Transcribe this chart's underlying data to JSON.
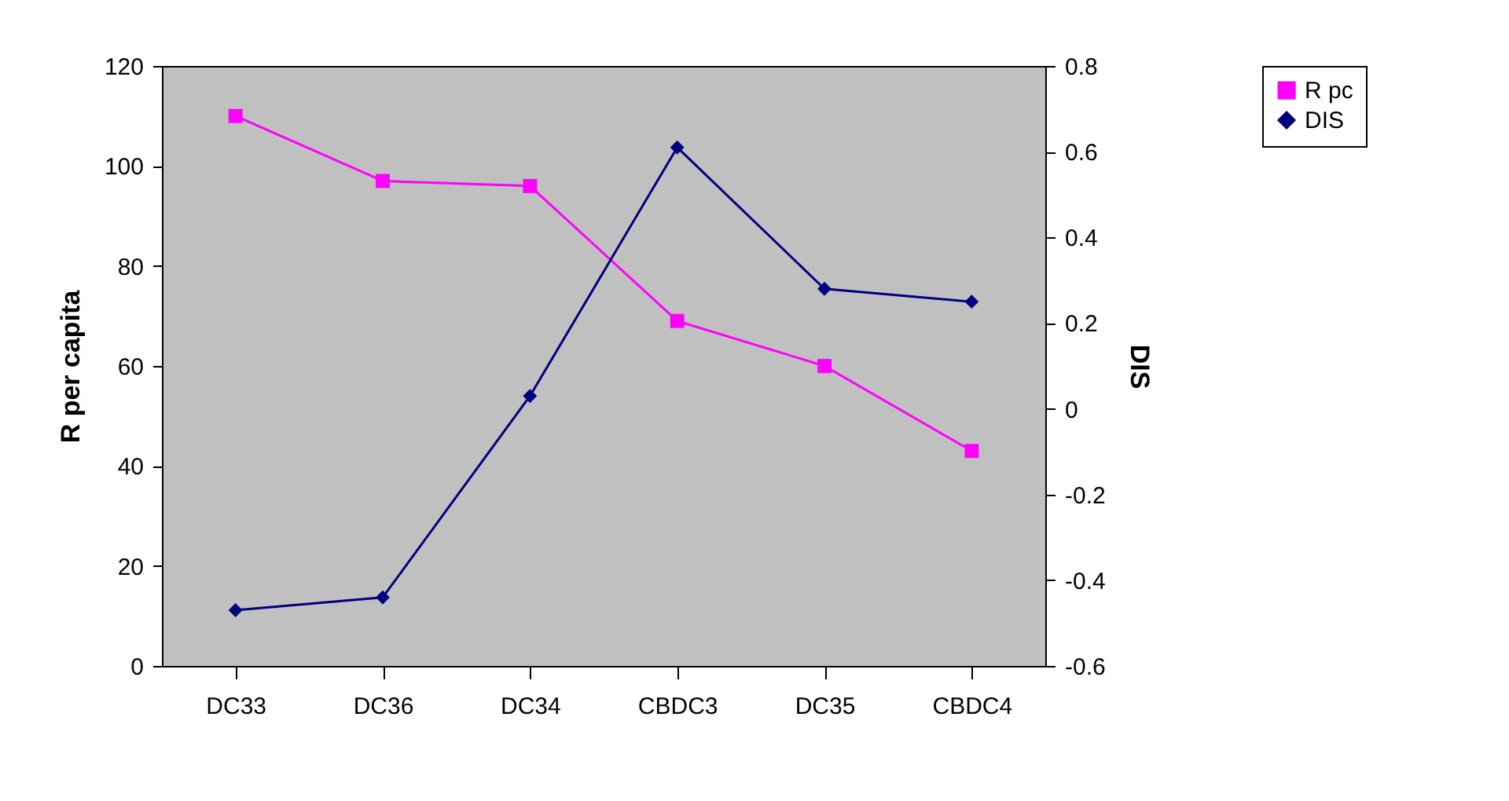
{
  "chart_data": {
    "type": "line",
    "ylabel": "R per capita",
    "y2label": "DIS",
    "categories": [
      "DC33",
      "DC36",
      "DC34",
      "CBDC3",
      "DC35",
      "CBDC4"
    ],
    "series": [
      {
        "name": "R pc",
        "color": "#ff00ff",
        "marker": "square",
        "values": [
          110,
          97,
          96,
          69,
          60,
          43
        ]
      },
      {
        "name": "DIS",
        "color": "#000080",
        "marker": "diamond",
        "axis": "y2",
        "values": [
          -0.47,
          -0.44,
          0.03,
          0.61,
          0.28,
          0.25
        ]
      }
    ],
    "ylim": [
      0,
      120
    ],
    "yticks": [
      0,
      20,
      40,
      60,
      80,
      100,
      120
    ],
    "y2lim": [
      -0.6,
      0.8
    ],
    "y2ticks": [
      -0.6,
      -0.4,
      -0.2,
      0,
      0.2,
      0.4,
      0.6,
      0.8
    ],
    "legend": "right"
  }
}
